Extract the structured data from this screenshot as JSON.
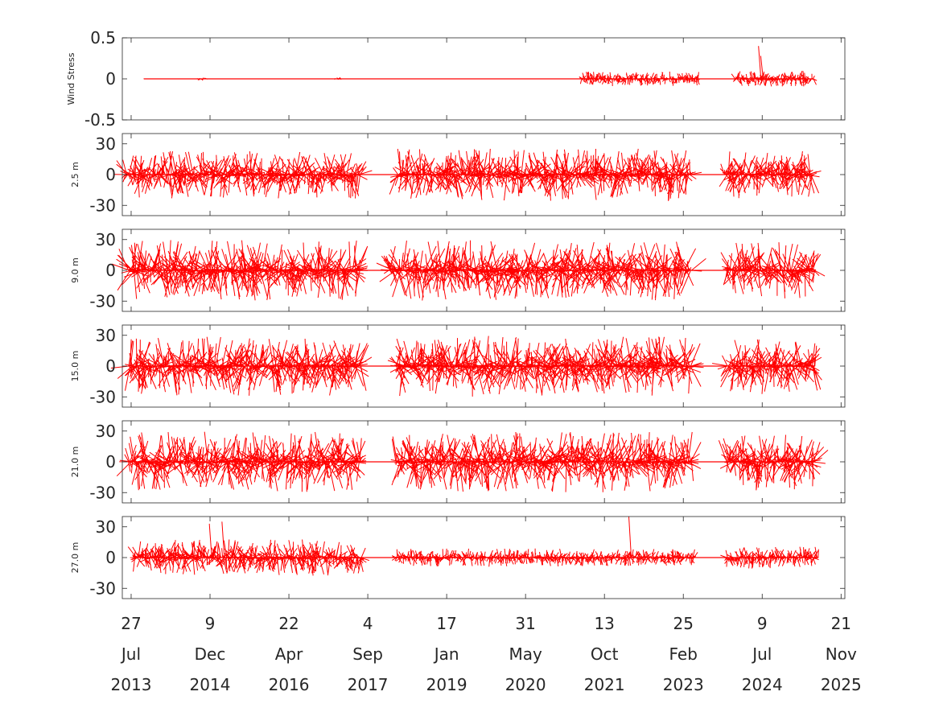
{
  "chart_data": [
    {
      "type": "line",
      "ylabel": "Wind Stress",
      "ylim": [
        -0.5,
        0.5
      ],
      "yticks": [
        "-0.5",
        "0",
        "0.5"
      ],
      "ytick_values": [
        -0.5,
        0,
        0.5
      ],
      "color": "#ff0000",
      "segments": [
        {
          "start": "2013-10-15",
          "end": "2014-09-20",
          "amplitude": 0.003
        },
        {
          "start": "2014-09-20",
          "end": "2014-11-20",
          "amplitude": 0.02
        },
        {
          "start": "2014-11-20",
          "end": "2017-02-01",
          "amplitude": 0.003
        },
        {
          "start": "2017-02-01",
          "end": "2017-03-20",
          "amplitude": 0.02
        },
        {
          "start": "2017-03-20",
          "end": "2021-05-15",
          "amplitude": 0.003
        },
        {
          "start": "2021-05-15",
          "end": "2023-06-10",
          "amplitude": 0.09
        },
        {
          "start": "2023-06-10",
          "end": "2024-01-20",
          "amplitude": 0.003
        },
        {
          "start": "2024-01-20",
          "end": "2025-06-01",
          "amplitude": 0.1
        }
      ],
      "peaks": [
        {
          "date": "2024-07-01",
          "value": 0.4
        },
        {
          "date": "2024-07-15",
          "value": 0.28
        }
      ]
    },
    {
      "type": "line",
      "ylabel": "2.5 m",
      "ylim": [
        -40,
        40
      ],
      "yticks": [
        "-30",
        "0",
        "30"
      ],
      "ytick_values": [
        -30,
        0,
        30
      ],
      "color": "#ff0000",
      "segments": [
        {
          "start": "2013-06-20",
          "end": "2017-07-20",
          "amplitude": 24
        },
        {
          "start": "2017-07-20",
          "end": "2018-03-10",
          "amplitude": 0
        },
        {
          "start": "2018-03-10",
          "end": "2023-04-20",
          "amplitude": 26
        },
        {
          "start": "2023-04-20",
          "end": "2023-11-10",
          "amplitude": 0
        },
        {
          "start": "2023-11-10",
          "end": "2025-06-01",
          "amplitude": 24
        }
      ]
    },
    {
      "type": "line",
      "ylabel": "9.0 m",
      "ylim": [
        -40,
        40
      ],
      "yticks": [
        "-30",
        "0",
        "30"
      ],
      "ytick_values": [
        -30,
        0,
        30
      ],
      "color": "#ff0000",
      "segments": [
        {
          "start": "2013-07-10",
          "end": "2017-07-20",
          "amplitude": 30
        },
        {
          "start": "2017-07-20",
          "end": "2018-01-15",
          "amplitude": 0
        },
        {
          "start": "2018-01-15",
          "end": "2023-04-20",
          "amplitude": 30
        },
        {
          "start": "2023-04-20",
          "end": "2023-11-25",
          "amplitude": 0
        },
        {
          "start": "2023-11-25",
          "end": "2025-06-10",
          "amplitude": 28
        }
      ]
    },
    {
      "type": "line",
      "ylabel": "15.0 m",
      "ylim": [
        -40,
        40
      ],
      "yticks": [
        "-30",
        "0",
        "30"
      ],
      "ytick_values": [
        -30,
        0,
        30
      ],
      "color": "#ff0000",
      "segments": [
        {
          "start": "2013-07-10",
          "end": "2017-07-25",
          "amplitude": 30
        },
        {
          "start": "2017-07-25",
          "end": "2018-03-01",
          "amplitude": 0
        },
        {
          "start": "2018-03-01",
          "end": "2023-04-20",
          "amplitude": 30
        },
        {
          "start": "2023-04-20",
          "end": "2023-11-25",
          "amplitude": 0
        },
        {
          "start": "2023-11-25",
          "end": "2025-06-10",
          "amplitude": 28
        }
      ]
    },
    {
      "type": "line",
      "ylabel": "21.0 m",
      "ylim": [
        -40,
        40
      ],
      "yticks": [
        "-30",
        "0",
        "30"
      ],
      "ytick_values": [
        -30,
        0,
        30
      ],
      "color": "#ff0000",
      "segments": [
        {
          "start": "2013-07-10",
          "end": "2017-07-25",
          "amplitude": 30
        },
        {
          "start": "2017-07-25",
          "end": "2018-03-01",
          "amplitude": 0
        },
        {
          "start": "2018-03-01",
          "end": "2023-04-20",
          "amplitude": 30
        },
        {
          "start": "2023-04-20",
          "end": "2023-11-25",
          "amplitude": 0
        },
        {
          "start": "2023-11-25",
          "end": "2025-06-10",
          "amplitude": 28
        }
      ]
    },
    {
      "type": "line",
      "ylabel": "27.0 m",
      "ylim": [
        -40,
        40
      ],
      "yticks": [
        "-30",
        "0",
        "30"
      ],
      "ytick_values": [
        -30,
        0,
        30
      ],
      "color": "#ff0000",
      "segments": [
        {
          "start": "2013-08-10",
          "end": "2017-08-01",
          "amplitude": 18
        },
        {
          "start": "2017-08-01",
          "end": "2018-03-01",
          "amplitude": 0
        },
        {
          "start": "2018-03-01",
          "end": "2023-05-15",
          "amplitude": 9
        },
        {
          "start": "2023-05-15",
          "end": "2023-11-25",
          "amplitude": 0
        },
        {
          "start": "2023-11-25",
          "end": "2025-07-01",
          "amplitude": 11
        }
      ],
      "peaks": [
        {
          "date": "2014-12-20",
          "value": 33
        },
        {
          "date": "2015-03-10",
          "value": 35
        },
        {
          "date": "2022-04-01",
          "value": 40
        }
      ]
    }
  ],
  "x_axis": {
    "range": [
      "2013-06-01",
      "2025-12-15"
    ],
    "ticks": [
      {
        "date": "2013-07-27",
        "day": "27",
        "month": "Jul",
        "year": "2013"
      },
      {
        "date": "2014-12-09",
        "day": "9",
        "month": "Dec",
        "year": "2014"
      },
      {
        "date": "2016-04-22",
        "day": "22",
        "month": "Apr",
        "year": "2016"
      },
      {
        "date": "2017-09-04",
        "day": "4",
        "month": "Sep",
        "year": "2017"
      },
      {
        "date": "2019-01-17",
        "day": "17",
        "month": "Jan",
        "year": "2019"
      },
      {
        "date": "2020-05-31",
        "day": "31",
        "month": "May",
        "year": "2020"
      },
      {
        "date": "2021-10-13",
        "day": "13",
        "month": "Oct",
        "year": "2021"
      },
      {
        "date": "2023-02-25",
        "day": "25",
        "month": "Feb",
        "year": "2023"
      },
      {
        "date": "2024-07-09",
        "day": "9",
        "month": "Jul",
        "year": "2024"
      },
      {
        "date": "2025-11-21",
        "day": "21",
        "month": "Nov",
        "year": "2025"
      }
    ]
  }
}
